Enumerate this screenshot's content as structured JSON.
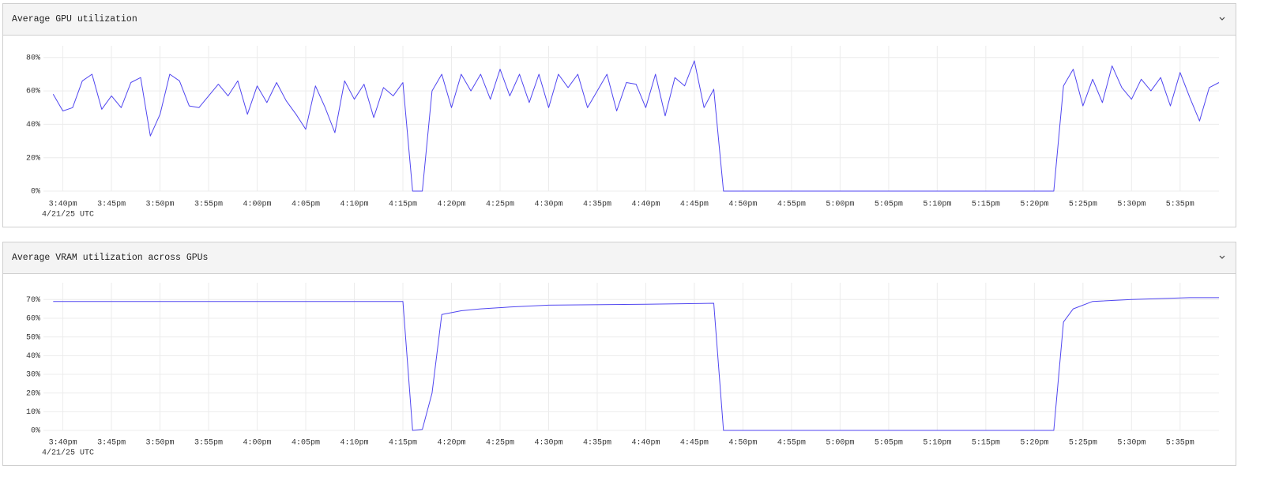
{
  "chart_data": [
    {
      "type": "line",
      "title": "Average GPU utilization",
      "x_date_label": "4/21/25 UTC",
      "color": "#5046f0",
      "grid": true,
      "x": [
        "3:39pm",
        "3:40pm",
        "3:41pm",
        "3:42pm",
        "3:43pm",
        "3:44pm",
        "3:45pm",
        "3:46pm",
        "3:47pm",
        "3:48pm",
        "3:49pm",
        "3:50pm",
        "3:51pm",
        "3:52pm",
        "3:53pm",
        "3:54pm",
        "3:55pm",
        "3:56pm",
        "3:57pm",
        "3:58pm",
        "3:59pm",
        "4:00pm",
        "4:01pm",
        "4:02pm",
        "4:03pm",
        "4:04pm",
        "4:05pm",
        "4:06pm",
        "4:07pm",
        "4:08pm",
        "4:09pm",
        "4:10pm",
        "4:11pm",
        "4:12pm",
        "4:13pm",
        "4:14pm",
        "4:15pm",
        "4:16pm",
        "4:17pm",
        "4:18pm",
        "4:19pm",
        "4:20pm",
        "4:21pm",
        "4:22pm",
        "4:23pm",
        "4:24pm",
        "4:25pm",
        "4:26pm",
        "4:27pm",
        "4:28pm",
        "4:29pm",
        "4:30pm",
        "4:31pm",
        "4:32pm",
        "4:33pm",
        "4:34pm",
        "4:35pm",
        "4:36pm",
        "4:37pm",
        "4:38pm",
        "4:39pm",
        "4:40pm",
        "4:41pm",
        "4:42pm",
        "4:43pm",
        "4:44pm",
        "4:45pm",
        "4:46pm",
        "4:47pm",
        "4:48pm",
        "4:49pm",
        "4:50pm",
        "4:51pm",
        "4:52pm",
        "4:53pm",
        "4:54pm",
        "4:55pm",
        "4:56pm",
        "4:57pm",
        "4:58pm",
        "4:59pm",
        "5:00pm",
        "5:01pm",
        "5:02pm",
        "5:03pm",
        "5:04pm",
        "5:05pm",
        "5:06pm",
        "5:07pm",
        "5:08pm",
        "5:09pm",
        "5:10pm",
        "5:11pm",
        "5:12pm",
        "5:13pm",
        "5:14pm",
        "5:15pm",
        "5:16pm",
        "5:17pm",
        "5:18pm",
        "5:19pm",
        "5:20pm",
        "5:21pm",
        "5:22pm",
        "5:23pm",
        "5:24pm",
        "5:25pm",
        "5:26pm",
        "5:27pm",
        "5:28pm",
        "5:29pm",
        "5:30pm",
        "5:31pm",
        "5:32pm",
        "5:33pm",
        "5:34pm",
        "5:35pm",
        "5:36pm",
        "5:37pm",
        "5:38pm",
        "5:39pm"
      ],
      "values": [
        58,
        48,
        50,
        66,
        70,
        49,
        57,
        50,
        65,
        68,
        33,
        46,
        70,
        66,
        51,
        50,
        57,
        64,
        57,
        66,
        46,
        63,
        53,
        65,
        54,
        46,
        37,
        63,
        50,
        35,
        66,
        55,
        64,
        44,
        62,
        57,
        65,
        0,
        0,
        60,
        70,
        50,
        70,
        60,
        70,
        55,
        73,
        57,
        70,
        53,
        70,
        50,
        70,
        62,
        70,
        50,
        60,
        70,
        48,
        65,
        64,
        50,
        70,
        45,
        68,
        63,
        78,
        50,
        61,
        0,
        0,
        0,
        0,
        0,
        0,
        0,
        0,
        0,
        0,
        0,
        0,
        0,
        0,
        0,
        0,
        0,
        0,
        0,
        0,
        0,
        0,
        0,
        0,
        0,
        0,
        0,
        0,
        0,
        0,
        0,
        0,
        0,
        0,
        0,
        63,
        73,
        51,
        67,
        53,
        75,
        62,
        55,
        67,
        60,
        68,
        51,
        71,
        56,
        42,
        62,
        65
      ],
      "xlim": [
        "3:38pm",
        "5:39pm"
      ],
      "xticks": [
        "3:40pm",
        "3:45pm",
        "3:50pm",
        "3:55pm",
        "4:00pm",
        "4:05pm",
        "4:10pm",
        "4:15pm",
        "4:20pm",
        "4:25pm",
        "4:30pm",
        "4:35pm",
        "4:40pm",
        "4:45pm",
        "4:50pm",
        "4:55pm",
        "5:00pm",
        "5:05pm",
        "5:10pm",
        "5:15pm",
        "5:20pm",
        "5:25pm",
        "5:30pm",
        "5:35pm"
      ],
      "ylim": [
        0,
        87
      ],
      "yticks": [
        {
          "value": 0,
          "label": "0%"
        },
        {
          "value": 20,
          "label": "20%"
        },
        {
          "value": 40,
          "label": "40%"
        },
        {
          "value": 60,
          "label": "60%"
        },
        {
          "value": 80,
          "label": "80%"
        }
      ]
    },
    {
      "type": "line",
      "title": "Average VRAM utilization across GPUs",
      "x_date_label": "4/21/25 UTC",
      "color": "#5046f0",
      "grid": true,
      "x": [
        "3:39pm",
        "4:15pm",
        "4:16pm",
        "4:17pm",
        "4:18pm",
        "4:19pm",
        "4:21pm",
        "4:23pm",
        "4:26pm",
        "4:30pm",
        "4:40pm",
        "4:47pm",
        "4:48pm",
        "5:22pm",
        "5:23pm",
        "5:24pm",
        "5:26pm",
        "5:30pm",
        "5:36pm",
        "5:39pm"
      ],
      "values": [
        69,
        69,
        0,
        0.5,
        20,
        62,
        64,
        65,
        66,
        67,
        67.5,
        68,
        0,
        0,
        58,
        65,
        69,
        70,
        71,
        71
      ],
      "xlim": [
        "3:38pm",
        "5:39pm"
      ],
      "xticks": [
        "3:40pm",
        "3:45pm",
        "3:50pm",
        "3:55pm",
        "4:00pm",
        "4:05pm",
        "4:10pm",
        "4:15pm",
        "4:20pm",
        "4:25pm",
        "4:30pm",
        "4:35pm",
        "4:40pm",
        "4:45pm",
        "4:50pm",
        "4:55pm",
        "5:00pm",
        "5:05pm",
        "5:10pm",
        "5:15pm",
        "5:20pm",
        "5:25pm",
        "5:30pm",
        "5:35pm"
      ],
      "ylim": [
        0,
        79
      ],
      "yticks": [
        {
          "value": 0,
          "label": "0%"
        },
        {
          "value": 10,
          "label": "10%"
        },
        {
          "value": 20,
          "label": "20%"
        },
        {
          "value": 30,
          "label": "30%"
        },
        {
          "value": 40,
          "label": "40%"
        },
        {
          "value": 50,
          "label": "50%"
        },
        {
          "value": 60,
          "label": "60%"
        },
        {
          "value": 70,
          "label": "70%"
        }
      ]
    }
  ]
}
